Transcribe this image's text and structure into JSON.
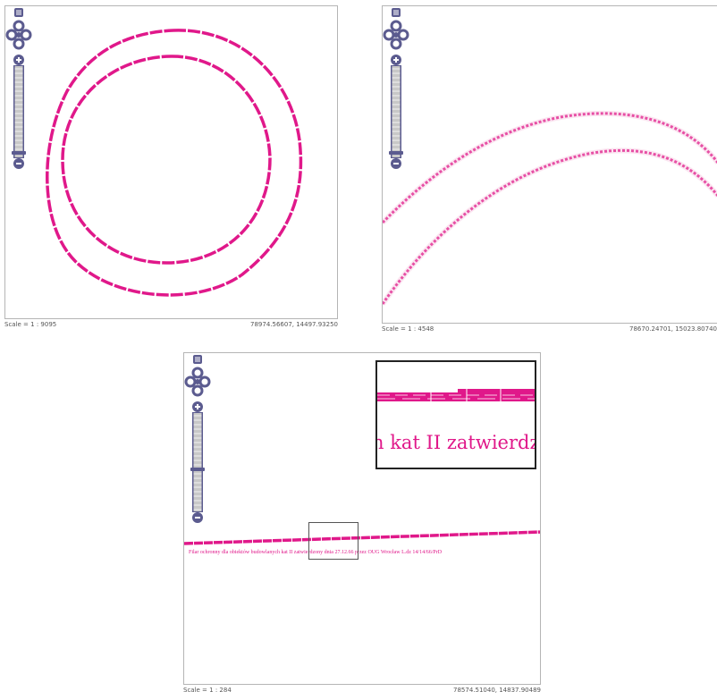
{
  "colors": {
    "feature": "#e0188a",
    "zoomControl": "#5b5b8f",
    "zoomTrack": "#c8c8c8"
  },
  "icons": {
    "layers": "layer-switcher-icon",
    "pan": "pan-arrows-icon",
    "zoomIn": "plus-icon",
    "zoomOut": "minus-icon"
  },
  "views": [
    {
      "scale": "Scale = 1 : 9095",
      "coords": "78974.56607, 14497.93250"
    },
    {
      "scale": "Scale = 1 : 4548",
      "coords": "78670.24701, 15023.80740"
    },
    {
      "scale": "Scale = 1 : 284",
      "coords": "78574.51040, 14837.90489"
    }
  ],
  "map_label": "Filar ochronny dla obiektów budowlanych kat II zatwierdzony dnia 27.12.66 przez OUG Wrocław L.dz 14/14/66/PrD",
  "inset_label": "h kat II zatwierdz"
}
